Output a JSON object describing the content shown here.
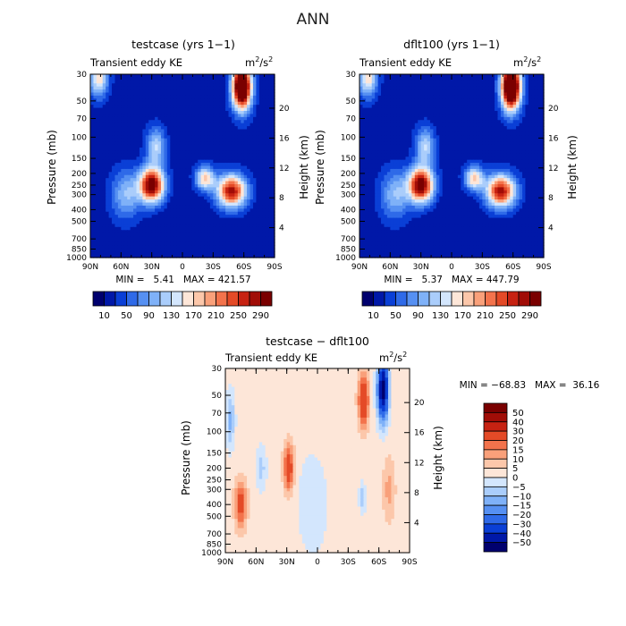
{
  "page_title": "ANN",
  "shared": {
    "subtitle": "Transient eddy KE",
    "units_base": "m",
    "units_exp": "2",
    "units_tail": "/s",
    "units_tail_exp": "2",
    "left_axis_label": "Pressure (mb)",
    "right_axis_label": "Height (km)"
  },
  "chart_data": [
    {
      "type": "heatmap",
      "title": "testcase (yrs 1−1)",
      "subtitle": "Transient eddy KE",
      "units": "m2/s2",
      "stats": {
        "min_label": "MIN =",
        "min": "5.41",
        "max_label": "MAX =",
        "max": "421.57"
      },
      "x_ticks": [
        "90N",
        "60N",
        "30N",
        "0",
        "30S",
        "60S",
        "90S"
      ],
      "y_ticks": [
        "30",
        "50",
        "70",
        "100",
        "150",
        "200",
        "250",
        "300",
        "400",
        "500",
        "700",
        "850",
        "1000"
      ],
      "height_ticks": [
        "20",
        "16",
        "12",
        "8",
        "4"
      ],
      "colorbar_labels": [
        "10",
        "50",
        "90",
        "130",
        "170",
        "210",
        "250",
        "290"
      ],
      "features": [
        {
          "lat": 30,
          "p": 250,
          "value": 300
        },
        {
          "lat": -55,
          "p": 300,
          "value": 260
        },
        {
          "lat": -55,
          "p": 30,
          "value": 400
        },
        {
          "lat": 80,
          "p": 30,
          "value": 150
        }
      ]
    },
    {
      "type": "heatmap",
      "title": "dflt100 (yrs 1−1)",
      "subtitle": "Transient eddy KE",
      "units": "m2/s2",
      "stats": {
        "min_label": "MIN =",
        "min": "5.37",
        "max_label": "MAX =",
        "max": "447.79"
      },
      "x_ticks": [
        "90N",
        "60N",
        "30N",
        "0",
        "30S",
        "60S",
        "90S"
      ],
      "y_ticks": [
        "30",
        "50",
        "70",
        "100",
        "150",
        "200",
        "250",
        "300",
        "400",
        "500",
        "700",
        "850",
        "1000"
      ],
      "height_ticks": [
        "20",
        "16",
        "12",
        "8",
        "4"
      ],
      "colorbar_labels": [
        "10",
        "50",
        "90",
        "130",
        "170",
        "210",
        "250",
        "290"
      ],
      "features": [
        {
          "lat": 30,
          "p": 250,
          "value": 290
        },
        {
          "lat": -55,
          "p": 300,
          "value": 270
        },
        {
          "lat": -55,
          "p": 40,
          "value": 430
        },
        {
          "lat": 80,
          "p": 30,
          "value": 150
        }
      ]
    },
    {
      "type": "heatmap",
      "title": "testcase − dflt100",
      "subtitle": "Transient eddy KE",
      "units": "m2/s2",
      "stats": {
        "min_label": "MIN =",
        "min": "−68.83",
        "max_label": "MAX =",
        "max": "36.16"
      },
      "x_ticks": [
        "90N",
        "60N",
        "30N",
        "0",
        "30S",
        "60S",
        "90S"
      ],
      "y_ticks": [
        "30",
        "50",
        "70",
        "100",
        "150",
        "200",
        "250",
        "300",
        "400",
        "500",
        "700",
        "850",
        "1000"
      ],
      "height_ticks": [
        "20",
        "16",
        "12",
        "8",
        "4"
      ],
      "colorbar_labels": [
        "50",
        "40",
        "30",
        "20",
        "15",
        "10",
        "5",
        "0",
        "−5",
        "−10",
        "−15",
        "−20",
        "−30",
        "−40",
        "−50"
      ],
      "features": [
        {
          "lat": -45,
          "p": 50,
          "value": 30
        },
        {
          "lat": -65,
          "p": 40,
          "value": -60
        },
        {
          "lat": 28,
          "p": 200,
          "value": 25
        },
        {
          "lat": 75,
          "p": 400,
          "value": 25
        }
      ]
    }
  ],
  "colors": {
    "seq": [
      "#00006e",
      "#0018a8",
      "#0a3fd6",
      "#2f6ae8",
      "#5690f2",
      "#7fb1f8",
      "#aacdfb",
      "#d3e6fd",
      "#fde6d8",
      "#fcc7aa",
      "#f9a07a",
      "#f3734c",
      "#e44a27",
      "#c72212",
      "#a10d07",
      "#7a0000"
    ],
    "div": [
      "#00006e",
      "#0018a8",
      "#0a3fd6",
      "#2f6ae8",
      "#5690f2",
      "#7fb1f8",
      "#aacdfb",
      "#d3e6fd",
      "#fde6d8",
      "#fcc7aa",
      "#f9a07a",
      "#f3734c",
      "#e44a27",
      "#c72212",
      "#a10d07",
      "#7a0000"
    ]
  }
}
